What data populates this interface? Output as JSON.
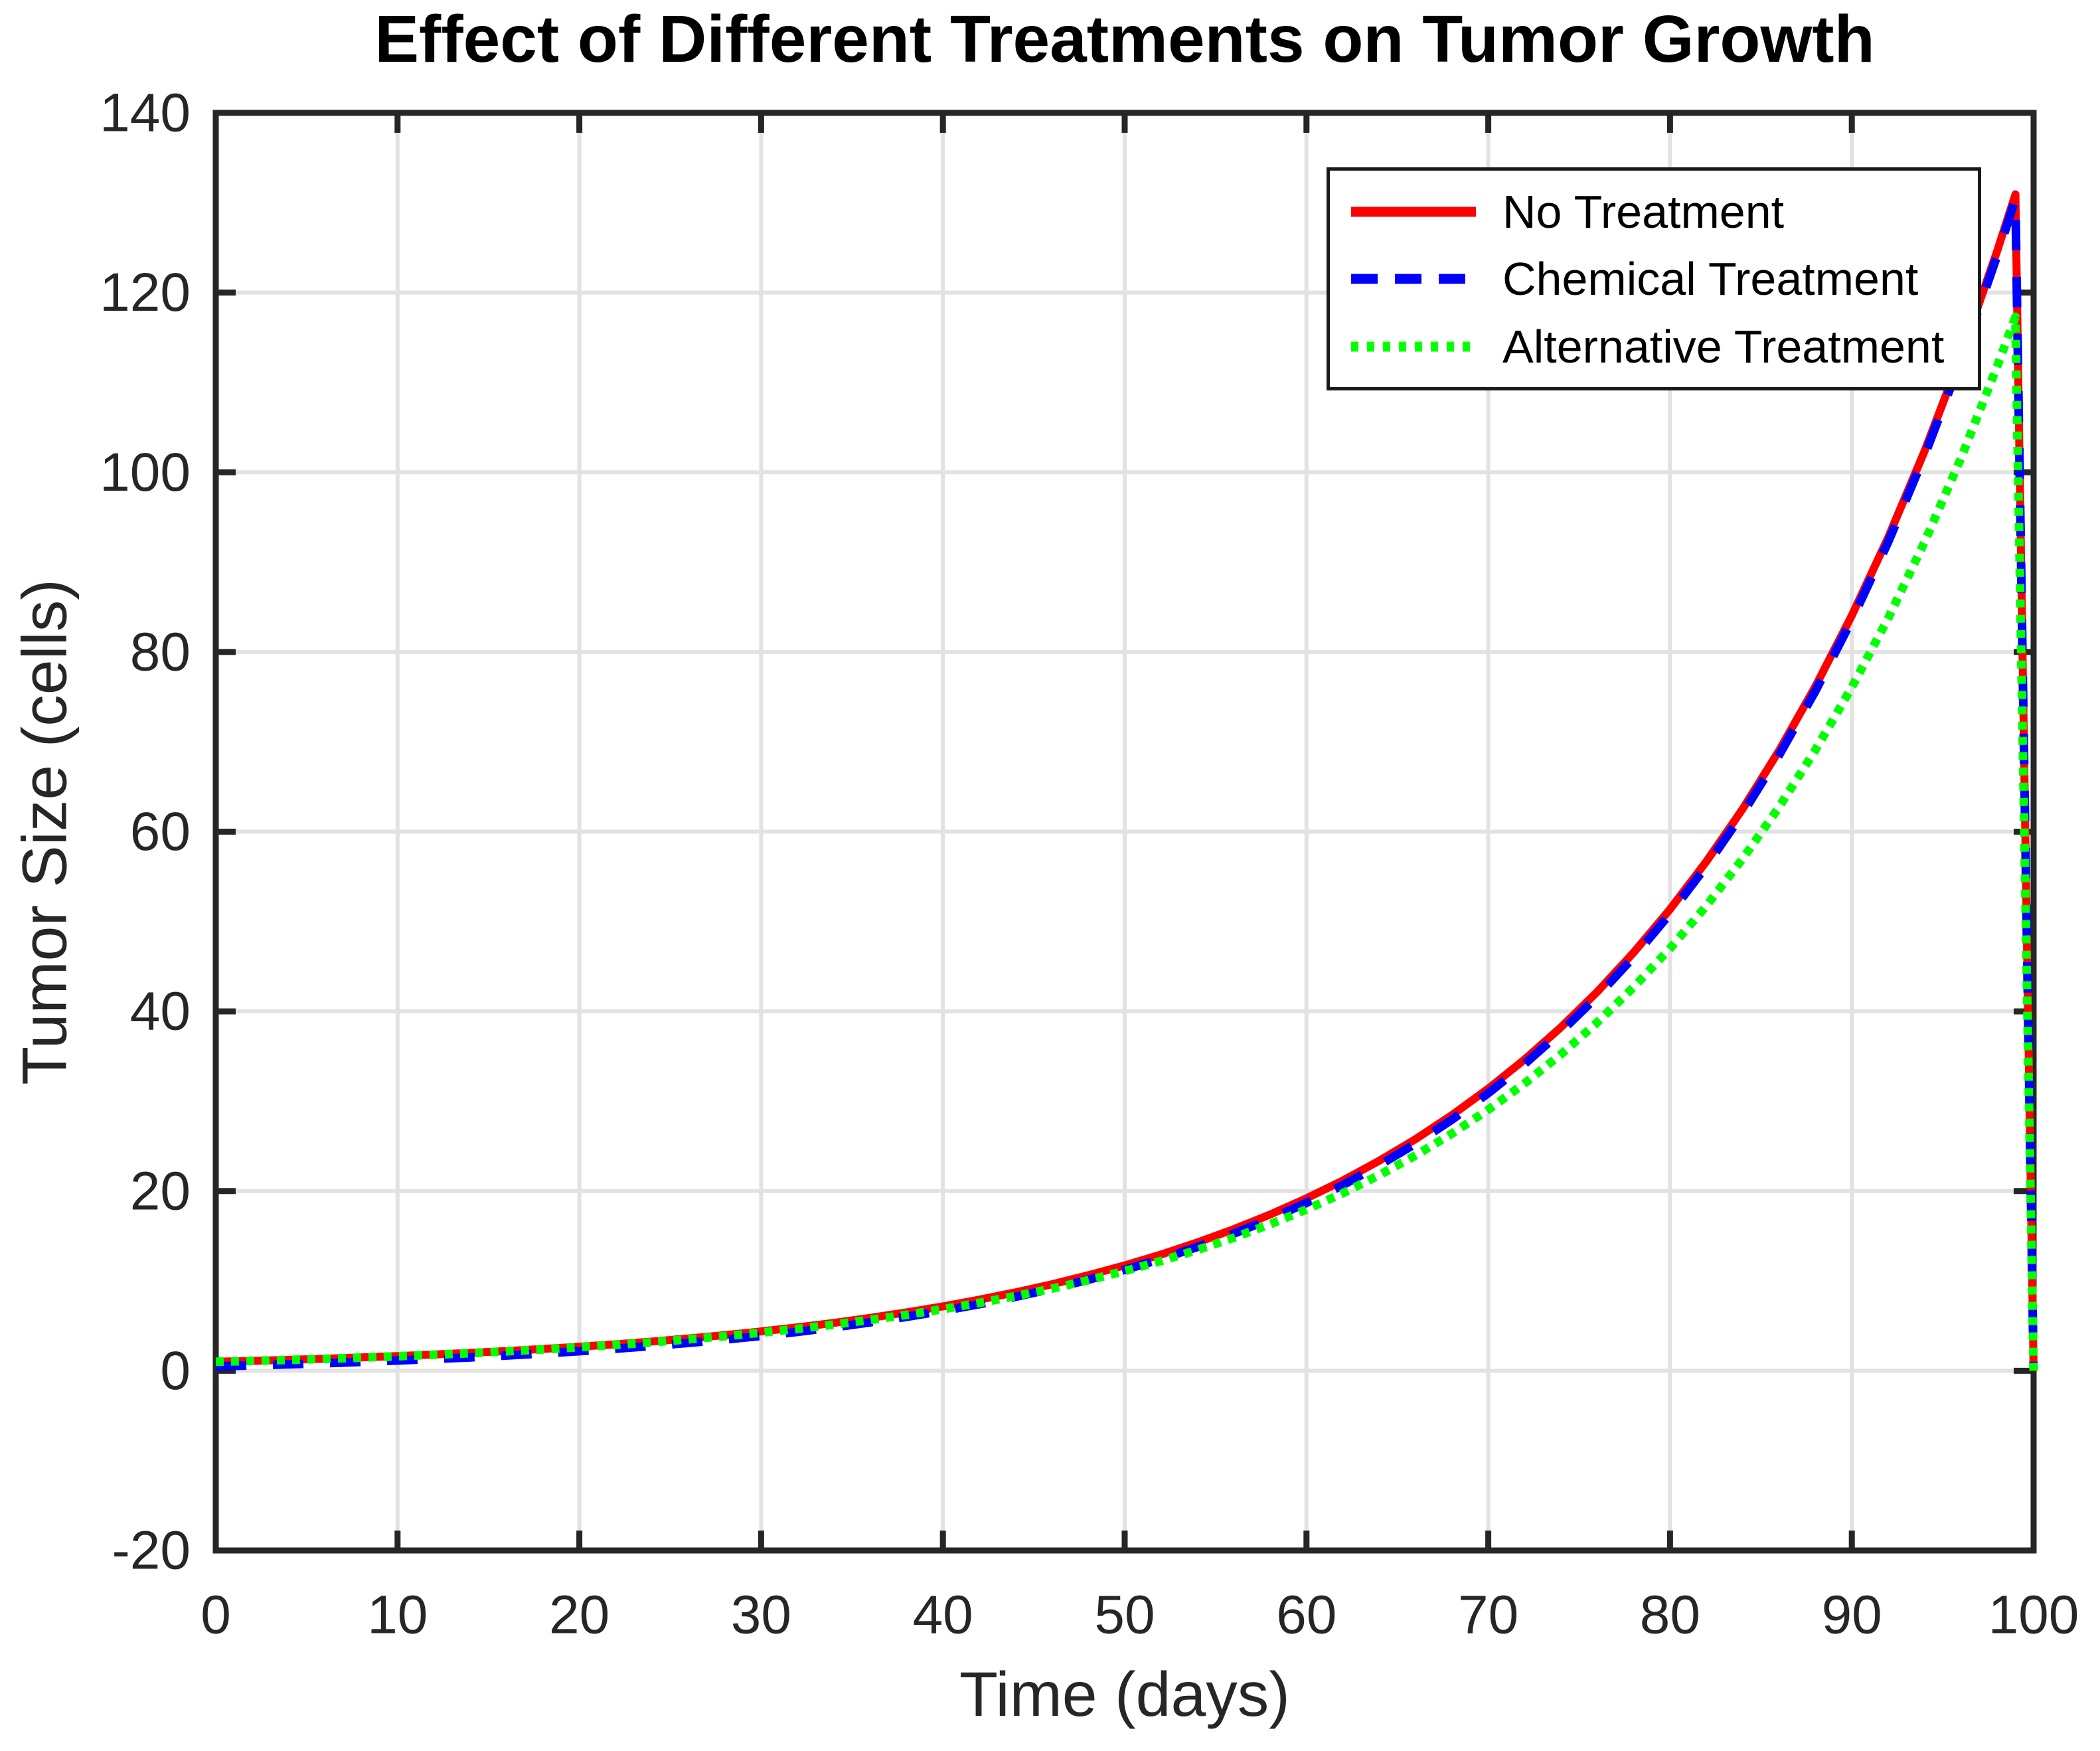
{
  "title": "Effect of Different Treatments on Tumor Growth",
  "axes": {
    "xlabel": "Time (days)",
    "ylabel": "Tumor Size (cells)",
    "x_ticks": [
      0,
      10,
      20,
      30,
      40,
      50,
      60,
      70,
      80,
      90,
      100
    ],
    "y_ticks": [
      -20,
      0,
      20,
      40,
      60,
      80,
      100,
      120,
      140
    ],
    "axis_color": "#262626",
    "grid_color": "#e2e2e2",
    "tick_label_color": "#262626"
  },
  "legend": {
    "position": "northeast",
    "entries": [
      "No Treatment",
      "Chemical Treatment",
      "Alternative Treatment"
    ]
  },
  "chart_data": {
    "type": "line",
    "title": "Effect of Different Treatments on Tumor Growth",
    "xlabel": "Time (days)",
    "ylabel": "Tumor Size (cells)",
    "xlim": [
      0,
      100
    ],
    "ylim": [
      -20,
      140
    ],
    "x_tick_step": 10,
    "y_tick_step": 20,
    "grid": "on",
    "legend_position": "northeast",
    "x": [
      0,
      2,
      4,
      6,
      8,
      10,
      12,
      14,
      16,
      18,
      20,
      22,
      24,
      26,
      28,
      30,
      32,
      34,
      36,
      38,
      40,
      42,
      44,
      46,
      48,
      50,
      52,
      54,
      56,
      58,
      60,
      62,
      64,
      66,
      68,
      70,
      72,
      74,
      76,
      78,
      80,
      82,
      84,
      86,
      88,
      90,
      92,
      94,
      96,
      98,
      99,
      100
    ],
    "series": [
      {
        "name": "No Treatment",
        "color": "#ff0000",
        "line_style": "solid",
        "line_width": 12,
        "values": [
          1.0,
          1.1,
          1.22,
          1.34,
          1.48,
          1.64,
          1.81,
          1.99,
          2.2,
          2.43,
          2.68,
          2.95,
          3.26,
          3.6,
          3.97,
          4.38,
          4.83,
          5.33,
          5.89,
          6.5,
          7.17,
          7.91,
          8.73,
          9.63,
          10.63,
          11.73,
          12.94,
          14.28,
          15.76,
          17.39,
          19.19,
          21.17,
          23.37,
          25.78,
          28.45,
          31.4,
          34.65,
          38.23,
          42.19,
          46.55,
          51.37,
          56.69,
          62.55,
          69.03,
          76.17,
          84.06,
          92.75,
          102.35,
          112.95,
          124.64,
          130.93,
          0
        ]
      },
      {
        "name": "Chemical Treatment",
        "color": "#0000ff",
        "line_style": "dashed",
        "line_width": 13,
        "values": [
          0.5,
          0.6,
          0.72,
          0.84,
          0.98,
          1.14,
          1.31,
          1.49,
          1.7,
          1.93,
          2.18,
          2.45,
          2.76,
          3.1,
          3.47,
          3.88,
          4.33,
          4.83,
          5.39,
          6.0,
          6.67,
          7.41,
          8.23,
          9.13,
          10.13,
          11.23,
          12.44,
          13.78,
          15.26,
          16.89,
          18.69,
          20.67,
          22.87,
          25.28,
          27.95,
          30.9,
          34.15,
          37.73,
          41.69,
          46.05,
          50.87,
          56.19,
          62.05,
          68.53,
          75.67,
          83.56,
          92.25,
          101.85,
          112.45,
          124.14,
          130.43,
          0
        ]
      },
      {
        "name": "Alternative Treatment",
        "color": "#00ff00",
        "line_style": "dotted",
        "line_width": 13,
        "values": [
          1.0,
          1.1,
          1.21,
          1.33,
          1.47,
          1.62,
          1.78,
          1.96,
          2.16,
          2.38,
          2.62,
          2.88,
          3.17,
          3.5,
          3.85,
          4.24,
          4.67,
          5.14,
          5.66,
          6.23,
          6.86,
          7.55,
          8.31,
          9.15,
          10.08,
          11.1,
          12.22,
          13.45,
          14.81,
          16.31,
          17.95,
          19.77,
          21.77,
          23.97,
          26.39,
          29.05,
          31.99,
          35.22,
          38.78,
          42.7,
          47.01,
          51.76,
          57.0,
          62.75,
          69.1,
          76.08,
          83.77,
          92.23,
          101.55,
          111.81,
          117.3,
          0
        ]
      }
    ]
  }
}
